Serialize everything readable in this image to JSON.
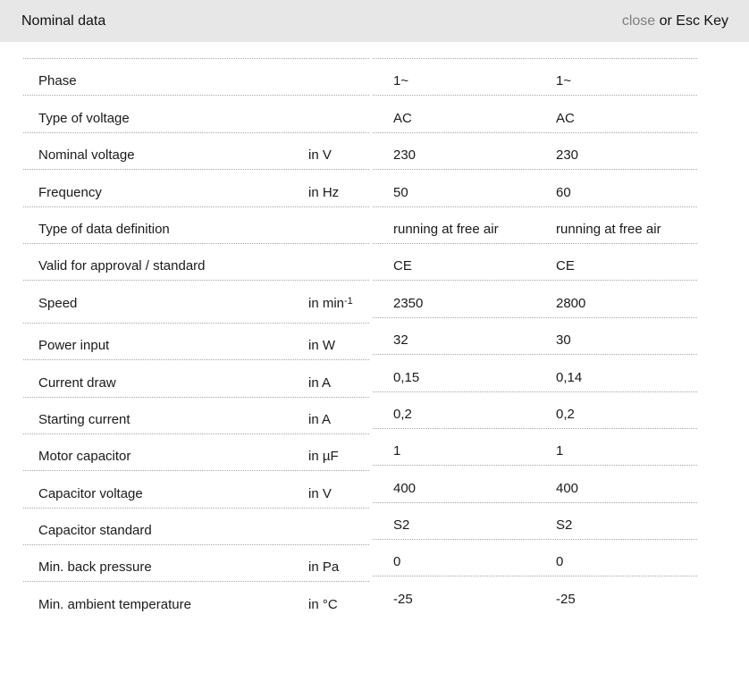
{
  "header": {
    "title": "Nominal data",
    "close_label": "close",
    "close_suffix": " or Esc Key"
  },
  "table": {
    "rows": [
      {
        "label": "Phase",
        "unit": "",
        "unit_sup": "",
        "values": [
          "1~",
          "1~"
        ]
      },
      {
        "label": "Type of voltage",
        "unit": "",
        "unit_sup": "",
        "values": [
          "AC",
          "AC"
        ]
      },
      {
        "label": "Nominal voltage",
        "unit": "in V",
        "unit_sup": "",
        "values": [
          "230",
          "230"
        ]
      },
      {
        "label": "Frequency",
        "unit": "in Hz",
        "unit_sup": "",
        "values": [
          "50",
          "60"
        ]
      },
      {
        "label": "Type of data definition",
        "unit": "",
        "unit_sup": "",
        "values": [
          "running at free air",
          "running at free air"
        ]
      },
      {
        "label": "Valid for approval / standard",
        "unit": "",
        "unit_sup": "",
        "values": [
          "CE",
          "CE"
        ]
      },
      {
        "label": "Speed",
        "unit": "in min",
        "unit_sup": "-1",
        "values": [
          "2350",
          "2800"
        ]
      },
      {
        "label": "Power input",
        "unit": "in W",
        "unit_sup": "",
        "values": [
          "32",
          "30"
        ]
      },
      {
        "label": "Current draw",
        "unit": "in A",
        "unit_sup": "",
        "values": [
          "0,15",
          "0,14"
        ]
      },
      {
        "label": "Starting current",
        "unit": "in A",
        "unit_sup": "",
        "values": [
          "0,2",
          "0,2"
        ]
      },
      {
        "label": "Motor capacitor",
        "unit": "in µF",
        "unit_sup": "",
        "values": [
          "1",
          "1"
        ]
      },
      {
        "label": "Capacitor voltage",
        "unit": "in V",
        "unit_sup": "",
        "values": [
          "400",
          "400"
        ]
      },
      {
        "label": "Capacitor standard",
        "unit": "",
        "unit_sup": "",
        "values": [
          "S2",
          "S2"
        ]
      },
      {
        "label": "Min. back pressure",
        "unit": "in Pa",
        "unit_sup": "",
        "values": [
          "0",
          "0"
        ]
      },
      {
        "label": "Min. ambient temperature",
        "unit": "in °C",
        "unit_sup": "",
        "values": [
          "-25",
          "-25"
        ]
      }
    ]
  },
  "colors": {
    "header_bg": "#e7e7e7",
    "text": "#1a1a1a",
    "close_link": "#7f7f7f",
    "divider": "#a6a6a6"
  }
}
